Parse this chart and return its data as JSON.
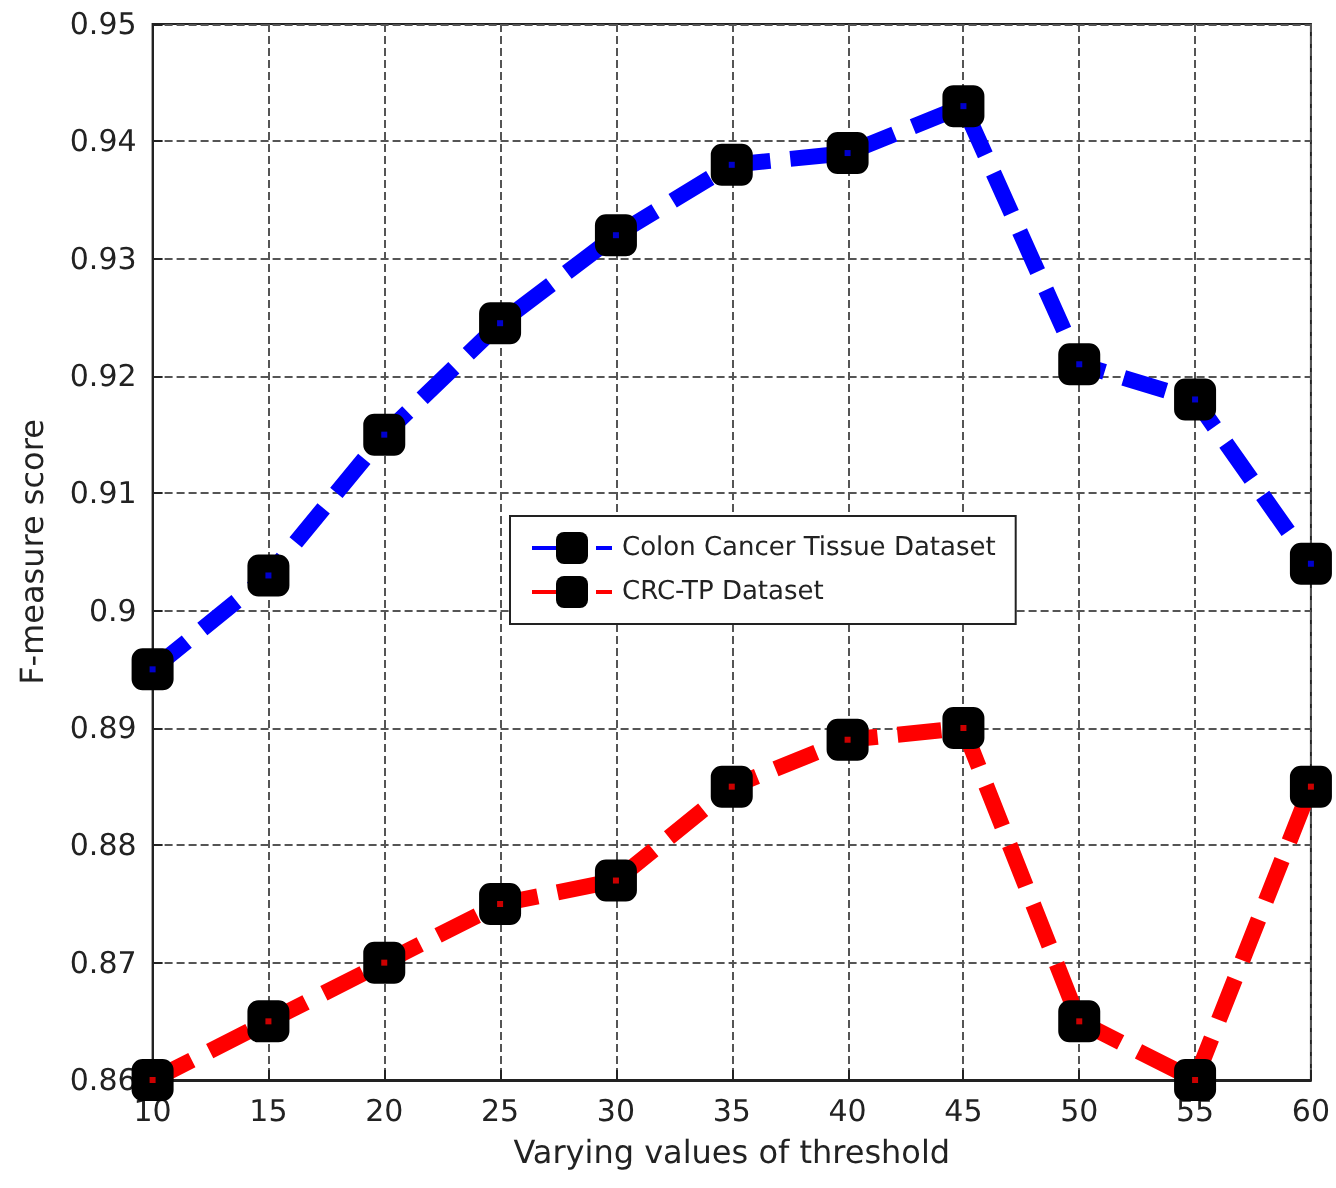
{
  "chart_data": {
    "type": "line",
    "xlabel": "Varying values of threshold",
    "ylabel": "F-measure score",
    "x": [
      10,
      15,
      20,
      25,
      30,
      35,
      40,
      45,
      50,
      55,
      60
    ],
    "series": [
      {
        "name": "Colon Cancer Tissue Dataset",
        "color": "#0000ff",
        "values": [
          0.895,
          0.903,
          0.915,
          0.9245,
          0.932,
          0.938,
          0.939,
          0.943,
          0.921,
          0.918,
          0.904
        ]
      },
      {
        "name": "CRC-TP Dataset",
        "color": "#ff0000",
        "values": [
          0.86,
          0.865,
          0.87,
          0.875,
          0.877,
          0.885,
          0.889,
          0.89,
          0.865,
          0.86,
          0.885
        ]
      }
    ],
    "xlim": [
      10,
      60
    ],
    "xticks": [
      10,
      15,
      20,
      25,
      30,
      35,
      40,
      45,
      50,
      55,
      60
    ],
    "ylim": [
      0.86,
      0.95
    ],
    "yticks": [
      0.86,
      0.87,
      0.88,
      0.89,
      0.9,
      0.91,
      0.92,
      0.93,
      0.94,
      0.95
    ],
    "grid": true,
    "legend": "center",
    "marker": "square",
    "line_style": "dashed"
  }
}
